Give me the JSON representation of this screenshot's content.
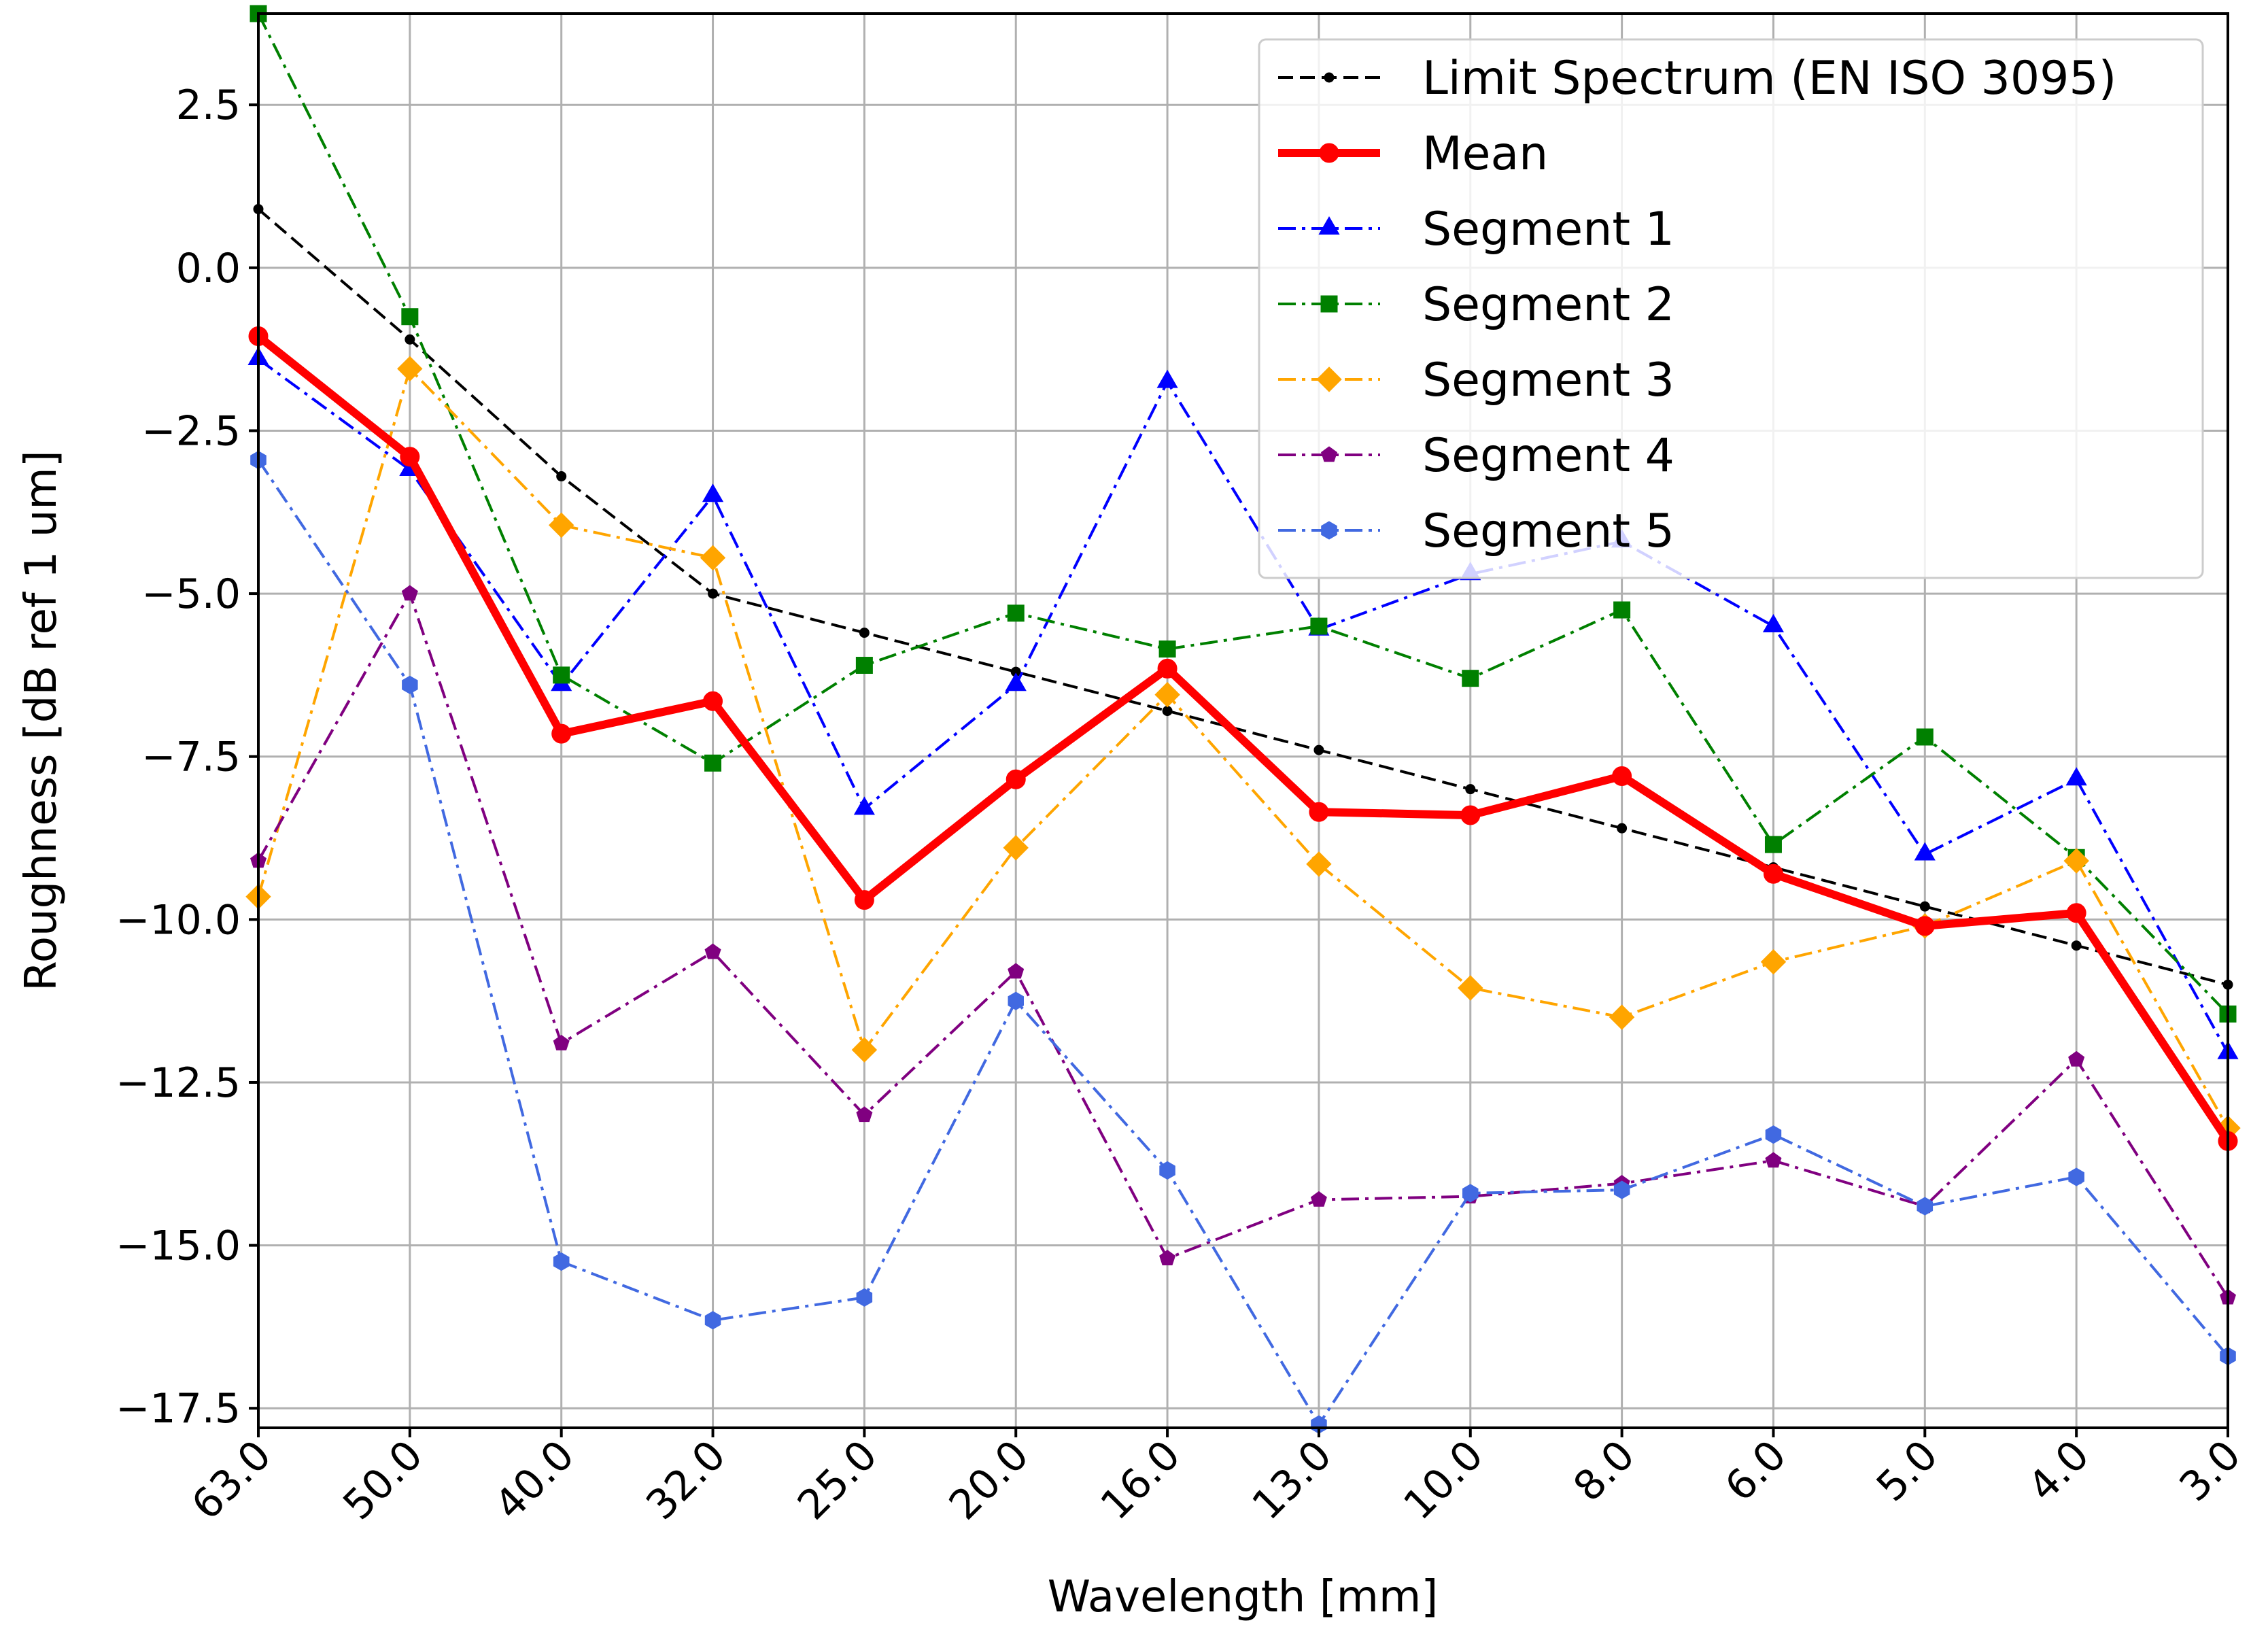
{
  "chart_data": {
    "type": "line",
    "title": "",
    "xlabel": "Wavelength [mm]",
    "ylabel": "Roughness [dB ref 1 um]",
    "categories": [
      "63.0",
      "50.0",
      "40.0",
      "32.0",
      "25.0",
      "20.0",
      "16.0",
      "13.0",
      "10.0",
      "8.0",
      "6.0",
      "5.0",
      "4.0",
      "3.0"
    ],
    "ylim": [
      -17.8,
      3.9
    ],
    "yticks": [
      2.5,
      0.0,
      -2.5,
      -5.0,
      -7.5,
      -10.0,
      -12.5,
      -15.0,
      -17.5
    ],
    "ytick_labels": [
      "2.5",
      "0.0",
      "−2.5",
      "−5.0",
      "−7.5",
      "−10.0",
      "−12.5",
      "−15.0",
      "−17.5"
    ],
    "grid": true,
    "legend_position": "top-right",
    "series": [
      {
        "name": "Limit Spectrum (EN ISO 3095)",
        "color": "#000000",
        "dash": "dashed",
        "marker": "point",
        "width": "thin",
        "values": [
          0.9,
          -1.1,
          -3.2,
          -5.0,
          -5.6,
          -6.2,
          -6.8,
          -7.4,
          -8.0,
          -8.6,
          -9.2,
          -9.8,
          -10.4,
          -11.0
        ]
      },
      {
        "name": "Mean",
        "color": "#ff0000",
        "dash": "solid",
        "marker": "circle",
        "width": "thick",
        "values": [
          -1.05,
          -2.9,
          -7.15,
          -6.65,
          -9.7,
          -7.85,
          -6.15,
          -8.35,
          -8.4,
          -7.8,
          -9.3,
          -10.1,
          -9.9,
          -13.4
        ]
      },
      {
        "name": "Segment 1",
        "color": "#0000ff",
        "dash": "dashdot",
        "marker": "triangle",
        "width": "thin",
        "values": [
          -1.4,
          -3.1,
          -6.4,
          -3.5,
          -8.3,
          -6.4,
          -1.75,
          -5.55,
          -4.7,
          -4.2,
          -5.5,
          -9.0,
          -7.85,
          -12.05
        ]
      },
      {
        "name": "Segment 2",
        "color": "#008000",
        "dash": "dashdot",
        "marker": "square",
        "width": "thin",
        "values": [
          3.9,
          -0.75,
          -6.25,
          -7.6,
          -6.1,
          -5.3,
          -5.85,
          -5.5,
          -6.3,
          -5.25,
          -8.85,
          -7.2,
          -9.05,
          -11.45
        ]
      },
      {
        "name": "Segment 3",
        "color": "#ffa500",
        "dash": "dashdot",
        "marker": "diamond",
        "width": "thin",
        "values": [
          -9.65,
          -1.55,
          -3.95,
          -4.45,
          -12.0,
          -8.9,
          -6.55,
          -9.15,
          -11.05,
          -11.5,
          -10.65,
          -10.1,
          -9.1,
          -13.2
        ]
      },
      {
        "name": "Segment 4",
        "color": "#800080",
        "dash": "dashdot",
        "marker": "pentagon",
        "width": "thin",
        "values": [
          -9.1,
          -5.0,
          -11.9,
          -10.5,
          -13.0,
          -10.8,
          -15.2,
          -14.3,
          -14.25,
          -14.05,
          -13.7,
          -14.4,
          -12.15,
          -15.8
        ]
      },
      {
        "name": "Segment 5",
        "color": "#4169e1",
        "dash": "dashdot",
        "marker": "hexagon",
        "width": "thin",
        "values": [
          -2.95,
          -6.4,
          -15.25,
          -16.15,
          -15.8,
          -11.25,
          -13.85,
          -17.75,
          -14.2,
          -14.15,
          -13.3,
          -14.4,
          -13.95,
          -16.7
        ]
      }
    ]
  }
}
